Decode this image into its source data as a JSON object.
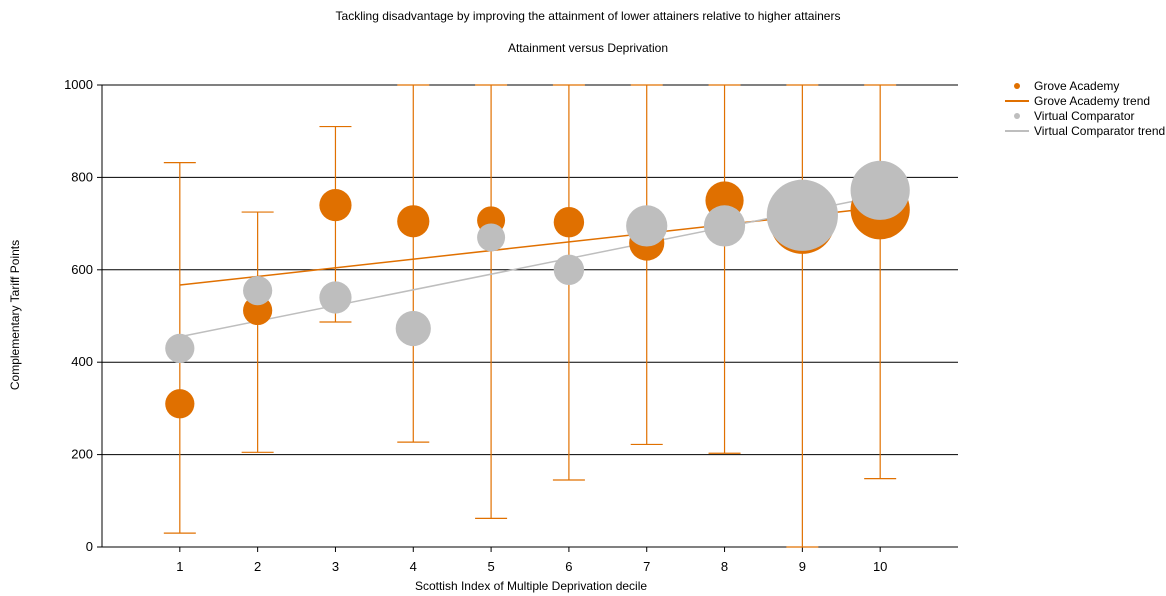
{
  "chart_data": {
    "type": "scatter",
    "title": "Tackling disadvantage by improving the attainment of lower attainers relative to higher attainers",
    "subtitle": "Attainment versus Deprivation",
    "xlabel": "Scottish Index of Multiple Deprivation decile",
    "ylabel": "Complementary Tariff Points",
    "xlim": [
      0,
      11
    ],
    "ylim": [
      0,
      1000
    ],
    "x_ticks": [
      "1",
      "2",
      "3",
      "4",
      "5",
      "6",
      "7",
      "8",
      "9",
      "10"
    ],
    "y_ticks": [
      "0",
      "200",
      "400",
      "600",
      "800",
      "1000"
    ],
    "grid": "horizontal",
    "legend_position": "top-right",
    "series": [
      {
        "name": "Grove Academy",
        "color": "#E07000",
        "x": [
          1,
          2,
          3,
          4,
          5,
          6,
          7,
          8,
          9,
          10
        ],
        "y": [
          310,
          512,
          740,
          705,
          707,
          703,
          658,
          750,
          705,
          730
        ],
        "relative_size": [
          0.5,
          0.5,
          0.55,
          0.55,
          0.48,
          0.52,
          0.6,
          0.65,
          1.1,
          1.0
        ],
        "error_low": [
          30,
          205,
          487,
          227,
          62,
          145,
          222,
          203,
          0,
          148
        ],
        "error_high": [
          832,
          725,
          910,
          1000,
          1000,
          1000,
          1000,
          1000,
          1000,
          1000
        ]
      },
      {
        "name": "Grove Academy trend",
        "color": "#E07000",
        "type": "line",
        "x": [
          1,
          10
        ],
        "y": [
          567,
          735
        ]
      },
      {
        "name": "Virtual Comparator",
        "color": "#BEBEBE",
        "x": [
          1,
          2,
          3,
          4,
          5,
          6,
          7,
          8,
          9,
          10
        ],
        "y": [
          430,
          555,
          540,
          473,
          670,
          600,
          695,
          695,
          718,
          772
        ],
        "relative_size": [
          0.5,
          0.5,
          0.55,
          0.6,
          0.48,
          0.52,
          0.7,
          0.7,
          1.2,
          1.0
        ]
      },
      {
        "name": "Virtual Comparator trend",
        "color": "#BEBEBE",
        "type": "line",
        "x": [
          1,
          10
        ],
        "y": [
          455,
          760
        ]
      }
    ]
  }
}
